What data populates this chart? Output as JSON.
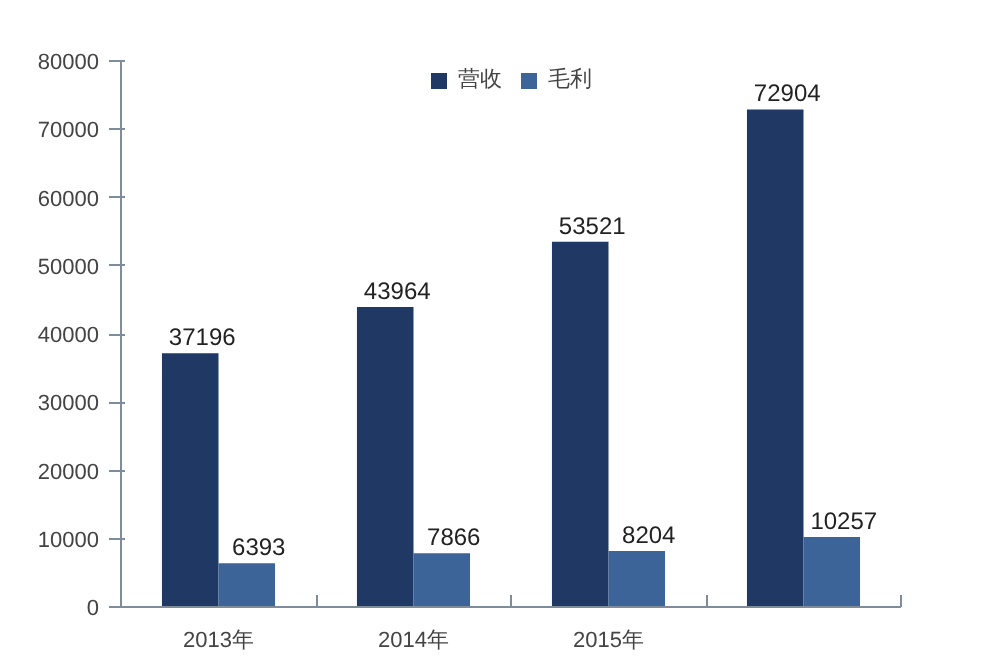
{
  "chart_data": {
    "type": "bar",
    "categories": [
      "2013年",
      "2014年",
      "2015年",
      null
    ],
    "series": [
      {
        "name": "营收",
        "color": "#1f3864",
        "values": [
          37196,
          43964,
          53521,
          72904
        ]
      },
      {
        "name": "毛利",
        "color": "#3d6499",
        "values": [
          6393,
          7866,
          8204,
          10257
        ]
      }
    ],
    "ylim": [
      0,
      80000
    ],
    "yticks": [
      0,
      10000,
      20000,
      30000,
      40000,
      50000,
      60000,
      70000,
      80000
    ],
    "data_labels": true,
    "grid": false,
    "legend": "top"
  }
}
